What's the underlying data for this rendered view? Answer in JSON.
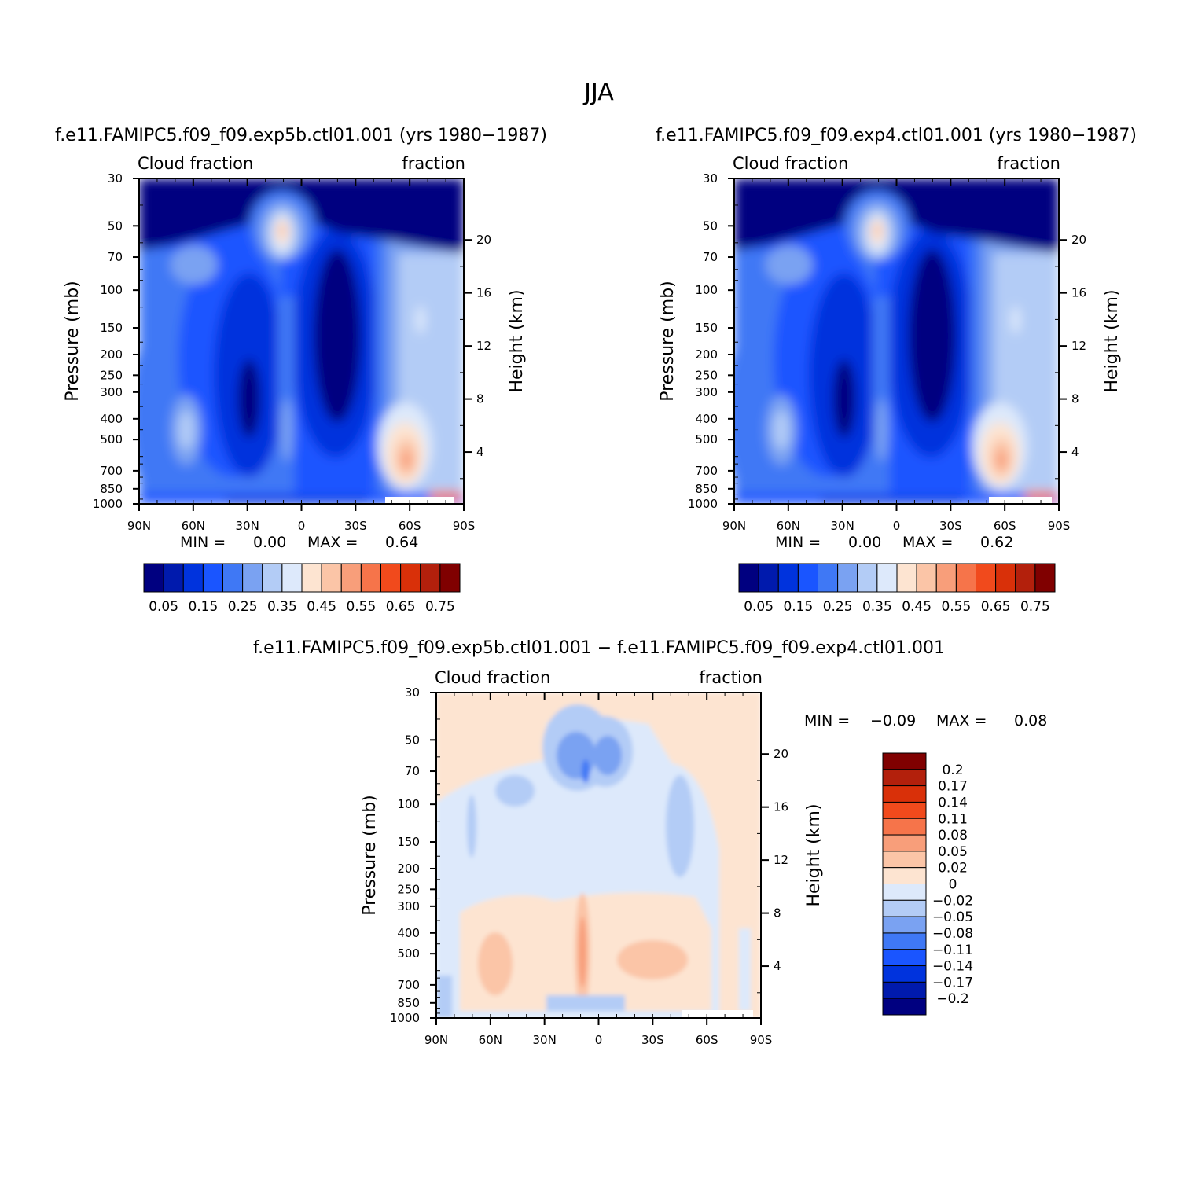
{
  "figure": {
    "title": "JJA",
    "panel_a": {
      "title": "f.e11.FAMIPC5.f09_f09.exp5b.ctl01.001 (yrs 1980−1987)",
      "left_label": "Cloud fraction",
      "right_label": "fraction",
      "min_label": "MIN =",
      "min_value": "0.00",
      "max_label": "MAX =",
      "max_value": "0.64"
    },
    "panel_b": {
      "title": "f.e11.FAMIPC5.f09_f09.exp4.ctl01.001 (yrs 1980−1987)",
      "left_label": "Cloud fraction",
      "right_label": "fraction",
      "min_label": "MIN =",
      "min_value": "0.00",
      "max_label": "MAX =",
      "max_value": "0.62"
    },
    "panel_c": {
      "title": "f.e11.FAMIPC5.f09_f09.exp5b.ctl01.001 − f.e11.FAMIPC5.f09_f09.exp4.ctl01.001",
      "left_label": "Cloud fraction",
      "right_label": "fraction",
      "min_label": "MIN =",
      "min_value": "−0.09",
      "max_label": "MAX =",
      "max_value": "0.08"
    }
  },
  "chart_data": [
    {
      "type": "heatmap",
      "name": "panel_a",
      "title": "f.e11.FAMIPC5.f09_f09.exp5b.ctl01.001 (yrs 1980−1987)",
      "xlabel": "",
      "ylabel": "Pressure (mb)",
      "y2label": "Height (km)",
      "x_ticks": [
        "90N",
        "60N",
        "30N",
        "0",
        "30S",
        "60S",
        "90S"
      ],
      "y_ticks": [
        "30",
        "50",
        "70",
        "100",
        "150",
        "200",
        "250",
        "300",
        "400",
        "500",
        "700",
        "850",
        "1000"
      ],
      "y2_ticks": [
        "20",
        "16",
        "12",
        "8",
        "4"
      ],
      "min": 0.0,
      "max": 0.64,
      "colorbar_labels": [
        "0.05",
        "0.15",
        "0.25",
        "0.35",
        "0.45",
        "0.55",
        "0.65",
        "0.75"
      ],
      "colors": [
        "#000080",
        "#001aad",
        "#0033dd",
        "#1a55ff",
        "#3f78f5",
        "#7aa2f2",
        "#b3ccf6",
        "#dde9fb",
        "#fde4d1",
        "#fbc5a7",
        "#f89e7a",
        "#f6744a",
        "#f14a1c",
        "#d93009",
        "#b3200c",
        "#800000"
      ]
    },
    {
      "type": "heatmap",
      "name": "panel_b",
      "title": "f.e11.FAMIPC5.f09_f09.exp4.ctl01.001 (yrs 1980−1987)",
      "xlabel": "",
      "ylabel": "Pressure (mb)",
      "y2label": "Height (km)",
      "x_ticks": [
        "90N",
        "60N",
        "30N",
        "0",
        "30S",
        "60S",
        "90S"
      ],
      "y_ticks": [
        "30",
        "50",
        "70",
        "100",
        "150",
        "200",
        "250",
        "300",
        "400",
        "500",
        "700",
        "850",
        "1000"
      ],
      "y2_ticks": [
        "20",
        "16",
        "12",
        "8",
        "4"
      ],
      "min": 0.0,
      "max": 0.62,
      "colorbar_labels": [
        "0.05",
        "0.15",
        "0.25",
        "0.35",
        "0.45",
        "0.55",
        "0.65",
        "0.75"
      ],
      "colors": [
        "#000080",
        "#001aad",
        "#0033dd",
        "#1a55ff",
        "#3f78f5",
        "#7aa2f2",
        "#b3ccf6",
        "#dde9fb",
        "#fde4d1",
        "#fbc5a7",
        "#f89e7a",
        "#f6744a",
        "#f14a1c",
        "#d93009",
        "#b3200c",
        "#800000"
      ]
    },
    {
      "type": "heatmap",
      "name": "panel_c",
      "title": "f.e11.FAMIPC5.f09_f09.exp5b.ctl01.001 − f.e11.FAMIPC5.f09_f09.exp4.ctl01.001",
      "xlabel": "",
      "ylabel": "Pressure (mb)",
      "y2label": "Height (km)",
      "x_ticks": [
        "90N",
        "60N",
        "30N",
        "0",
        "30S",
        "60S",
        "90S"
      ],
      "y_ticks": [
        "30",
        "50",
        "70",
        "100",
        "150",
        "200",
        "250",
        "300",
        "400",
        "500",
        "700",
        "850",
        "1000"
      ],
      "y2_ticks": [
        "20",
        "16",
        "12",
        "8",
        "4"
      ],
      "min": -0.09,
      "max": 0.08,
      "colorbar_labels": [
        "0.2",
        "0.17",
        "0.14",
        "0.11",
        "0.08",
        "0.05",
        "0.02",
        "0",
        "−0.02",
        "−0.05",
        "−0.08",
        "−0.11",
        "−0.14",
        "−0.17",
        "−0.2"
      ],
      "colors": [
        "#800000",
        "#b3200c",
        "#d93009",
        "#f14a1c",
        "#f6744a",
        "#f89e7a",
        "#fbc5a7",
        "#fde4d1",
        "#dde9fb",
        "#b3ccf6",
        "#7aa2f2",
        "#3f78f5",
        "#1a55ff",
        "#0033dd",
        "#001aad",
        "#000080"
      ]
    }
  ]
}
